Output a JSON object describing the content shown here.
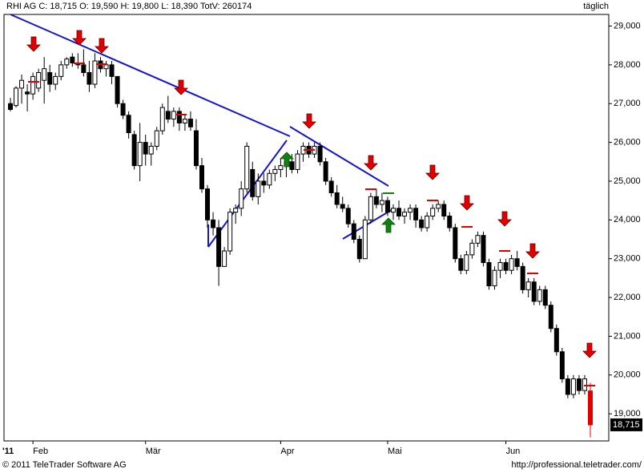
{
  "chart_data": {
    "type": "candlestick",
    "title": "RHI AG C: 18,715 O: 19,590 H: 19,800 L: 18,390 TotV: 260174",
    "period": "täglich",
    "footer_left": "© 2011 TeleTrader Software AG",
    "footer_right": "http://professional.teletrader.com/",
    "year_label": "'11",
    "last_price_label": "18,715",
    "ylim": [
      18300,
      29300
    ],
    "yticks": [
      {
        "value": 19000,
        "label": "19,000"
      },
      {
        "value": 20000,
        "label": "20,000"
      },
      {
        "value": 21000,
        "label": "21,000"
      },
      {
        "value": 22000,
        "label": "22,000"
      },
      {
        "value": 23000,
        "label": "23,000"
      },
      {
        "value": 24000,
        "label": "24,000"
      },
      {
        "value": 25000,
        "label": "25,000"
      },
      {
        "value": 26000,
        "label": "26,000"
      },
      {
        "value": 27000,
        "label": "27,000"
      },
      {
        "value": 28000,
        "label": "28,000"
      },
      {
        "value": 29000,
        "label": "29,000"
      }
    ],
    "xticks": [
      {
        "value": 4,
        "label": "Feb"
      },
      {
        "value": 24,
        "label": "Mär"
      },
      {
        "value": 48,
        "label": "Apr"
      },
      {
        "value": 67,
        "label": "Mai"
      },
      {
        "value": 88,
        "label": "Jun"
      }
    ],
    "candles": [
      [
        27000,
        27150,
        26800,
        26850
      ],
      [
        26950,
        27450,
        26900,
        27400
      ],
      [
        27400,
        27750,
        27000,
        27600
      ],
      [
        27300,
        27500,
        26800,
        27250
      ],
      [
        27250,
        27800,
        27100,
        27700
      ],
      [
        27400,
        27900,
        27300,
        27800
      ],
      [
        27600,
        28200,
        27000,
        27900
      ],
      [
        27800,
        28000,
        27300,
        27500
      ],
      [
        27500,
        27800,
        27350,
        27700
      ],
      [
        27700,
        28100,
        27600,
        28000
      ],
      [
        28000,
        28200,
        27900,
        28150
      ],
      [
        28200,
        28300,
        27950,
        28050
      ],
      [
        28050,
        28300,
        27900,
        28000
      ],
      [
        28000,
        28400,
        27700,
        27800
      ],
      [
        27800,
        28100,
        27300,
        27500
      ],
      [
        27500,
        28300,
        27400,
        28100
      ],
      [
        28100,
        28200,
        27800,
        27900
      ],
      [
        27900,
        28100,
        27700,
        28000
      ],
      [
        28000,
        28100,
        27500,
        27700
      ],
      [
        27700,
        27700,
        26900,
        27000
      ],
      [
        27000,
        27100,
        26600,
        26700
      ],
      [
        26700,
        26800,
        26100,
        26250
      ],
      [
        26200,
        26300,
        25300,
        25400
      ],
      [
        25400,
        26500,
        25000,
        26000
      ],
      [
        26000,
        26200,
        25400,
        25700
      ],
      [
        25700,
        26000,
        25400,
        25900
      ],
      [
        25900,
        26400,
        25800,
        26300
      ],
      [
        26300,
        27000,
        26200,
        26900
      ],
      [
        26800,
        27200,
        26500,
        26600
      ],
      [
        26600,
        26900,
        26400,
        26800
      ],
      [
        26800,
        26900,
        26300,
        26500
      ],
      [
        26500,
        26700,
        26300,
        26600
      ],
      [
        26600,
        26800,
        26300,
        26400
      ],
      [
        26300,
        26600,
        25300,
        25400
      ],
      [
        25400,
        25600,
        24700,
        24800
      ],
      [
        24800,
        24900,
        23800,
        24000
      ],
      [
        24000,
        24200,
        23600,
        23800
      ],
      [
        23800,
        24000,
        22300,
        22800
      ],
      [
        22800,
        23300,
        22800,
        23200
      ],
      [
        23200,
        24300,
        23100,
        24200
      ],
      [
        24200,
        24400,
        23900,
        24300
      ],
      [
        24300,
        25000,
        24100,
        24800
      ],
      [
        24800,
        26000,
        24700,
        25900
      ],
      [
        25300,
        25500,
        24500,
        24600
      ],
      [
        24600,
        25200,
        24400,
        25000
      ],
      [
        25000,
        25200,
        24700,
        24900
      ],
      [
        24900,
        25300,
        24800,
        25200
      ],
      [
        25200,
        25400,
        25000,
        25300
      ],
      [
        25300,
        25600,
        25100,
        25400
      ],
      [
        25400,
        25600,
        25100,
        25500
      ],
      [
        25500,
        25700,
        25200,
        25300
      ],
      [
        25300,
        25800,
        25200,
        25700
      ],
      [
        25700,
        26000,
        25500,
        25900
      ],
      [
        25900,
        26000,
        25600,
        25700
      ],
      [
        25700,
        26000,
        25600,
        25900
      ],
      [
        25900,
        26000,
        25400,
        25500
      ],
      [
        25500,
        25600,
        24900,
        25000
      ],
      [
        25000,
        25100,
        24600,
        24700
      ],
      [
        24700,
        24900,
        24300,
        24400
      ],
      [
        24400,
        24600,
        24200,
        24300
      ],
      [
        24300,
        24400,
        23800,
        23900
      ],
      [
        23900,
        24000,
        23400,
        23500
      ],
      [
        23500,
        23600,
        22900,
        23000
      ],
      [
        23000,
        24100,
        23000,
        24000
      ],
      [
        24000,
        24700,
        23900,
        24600
      ],
      [
        24600,
        24800,
        24300,
        24400
      ],
      [
        24400,
        24700,
        24200,
        24500
      ],
      [
        24500,
        24600,
        24100,
        24200
      ],
      [
        24200,
        24400,
        24000,
        24300
      ],
      [
        24300,
        24500,
        24000,
        24100
      ],
      [
        24100,
        24300,
        23900,
        24200
      ],
      [
        24200,
        24400,
        24000,
        24300
      ],
      [
        24300,
        24400,
        23800,
        24000
      ],
      [
        24000,
        24100,
        23700,
        23800
      ],
      [
        23800,
        24200,
        23700,
        24100
      ],
      [
        24100,
        24400,
        24000,
        24300
      ],
      [
        24300,
        24500,
        24200,
        24400
      ],
      [
        24400,
        24500,
        24000,
        24100
      ],
      [
        24100,
        24200,
        23700,
        23800
      ],
      [
        23800,
        23900,
        22900,
        23000
      ],
      [
        23000,
        23100,
        22600,
        22700
      ],
      [
        22700,
        23200,
        22600,
        23100
      ],
      [
        23100,
        23500,
        23000,
        23400
      ],
      [
        23400,
        23700,
        23300,
        23600
      ],
      [
        23600,
        23700,
        22800,
        22900
      ],
      [
        22900,
        23000,
        22200,
        22300
      ],
      [
        22300,
        22800,
        22200,
        22700
      ],
      [
        22700,
        23000,
        22500,
        22900
      ],
      [
        22900,
        23000,
        22600,
        22700
      ],
      [
        22700,
        23100,
        22600,
        23000
      ],
      [
        23000,
        23200,
        22700,
        22800
      ],
      [
        22800,
        22900,
        22100,
        22200
      ],
      [
        22200,
        22500,
        22000,
        22400
      ],
      [
        22400,
        22500,
        21800,
        21900
      ],
      [
        21900,
        22300,
        21800,
        22200
      ],
      [
        22200,
        22300,
        21700,
        21800
      ],
      [
        21800,
        21900,
        21100,
        21200
      ],
      [
        21200,
        21300,
        20500,
        20600
      ],
      [
        20600,
        20700,
        19800,
        19900
      ],
      [
        19900,
        20000,
        19400,
        19500
      ],
      [
        19500,
        20000,
        19400,
        19900
      ],
      [
        19900,
        20000,
        19500,
        19600
      ],
      [
        19600,
        20000,
        19500,
        19900
      ],
      [
        19590,
        19800,
        18390,
        18715
      ]
    ]
  }
}
